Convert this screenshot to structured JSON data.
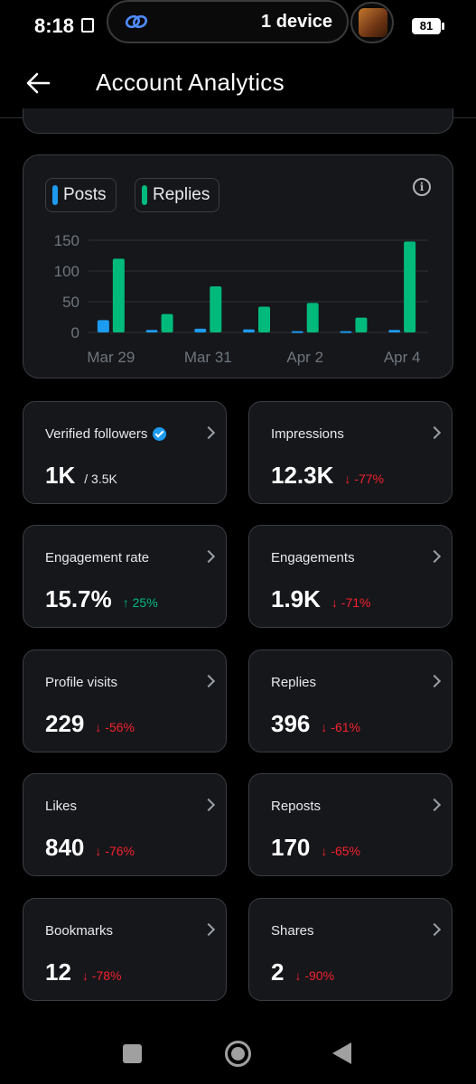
{
  "status_bar": {
    "time": "8:18",
    "device_text": "1 device",
    "battery": "81"
  },
  "header": {
    "title": "Account Analytics"
  },
  "chart_card": {
    "legend": [
      "Posts",
      "Replies"
    ]
  },
  "chart_data": {
    "type": "bar",
    "categories": [
      "Mar 29",
      "Mar 30",
      "Mar 31",
      "Apr 1",
      "Apr 2",
      "Apr 3",
      "Apr 4"
    ],
    "x_tick_labels": [
      "Mar 29",
      "Mar 31",
      "Apr 2",
      "Apr 4"
    ],
    "series": [
      {
        "name": "Posts",
        "color": "#1d9bf0",
        "values": [
          20,
          4,
          6,
          5,
          2,
          2,
          4
        ]
      },
      {
        "name": "Replies",
        "color": "#00ba7c",
        "values": [
          120,
          30,
          75,
          42,
          48,
          24,
          148
        ]
      }
    ],
    "ylim": [
      0,
      150
    ],
    "y_ticks": [
      0,
      50,
      100,
      150
    ],
    "grid": true
  },
  "stats": [
    {
      "label": "Verified followers",
      "value": "1K",
      "sub": "/ 3.5K",
      "verified": true
    },
    {
      "label": "Impressions",
      "value": "12.3K",
      "change": "↓ -77%",
      "dir": "down"
    },
    {
      "label": "Engagement rate",
      "value": "15.7%",
      "change": "↑ 25%",
      "dir": "up"
    },
    {
      "label": "Engagements",
      "value": "1.9K",
      "change": "↓ -71%",
      "dir": "down"
    },
    {
      "label": "Profile visits",
      "value": "229",
      "change": "↓ -56%",
      "dir": "down"
    },
    {
      "label": "Replies",
      "value": "396",
      "change": "↓ -61%",
      "dir": "down"
    },
    {
      "label": "Likes",
      "value": "840",
      "change": "↓ -76%",
      "dir": "down"
    },
    {
      "label": "Reposts",
      "value": "170",
      "change": "↓ -65%",
      "dir": "down"
    },
    {
      "label": "Bookmarks",
      "value": "12",
      "change": "↓ -78%",
      "dir": "down"
    },
    {
      "label": "Shares",
      "value": "2",
      "change": "↓ -90%",
      "dir": "down"
    }
  ],
  "icons": {
    "back": "arrow-left-icon",
    "info": "info-icon",
    "chevron": "chevron-right-icon"
  }
}
